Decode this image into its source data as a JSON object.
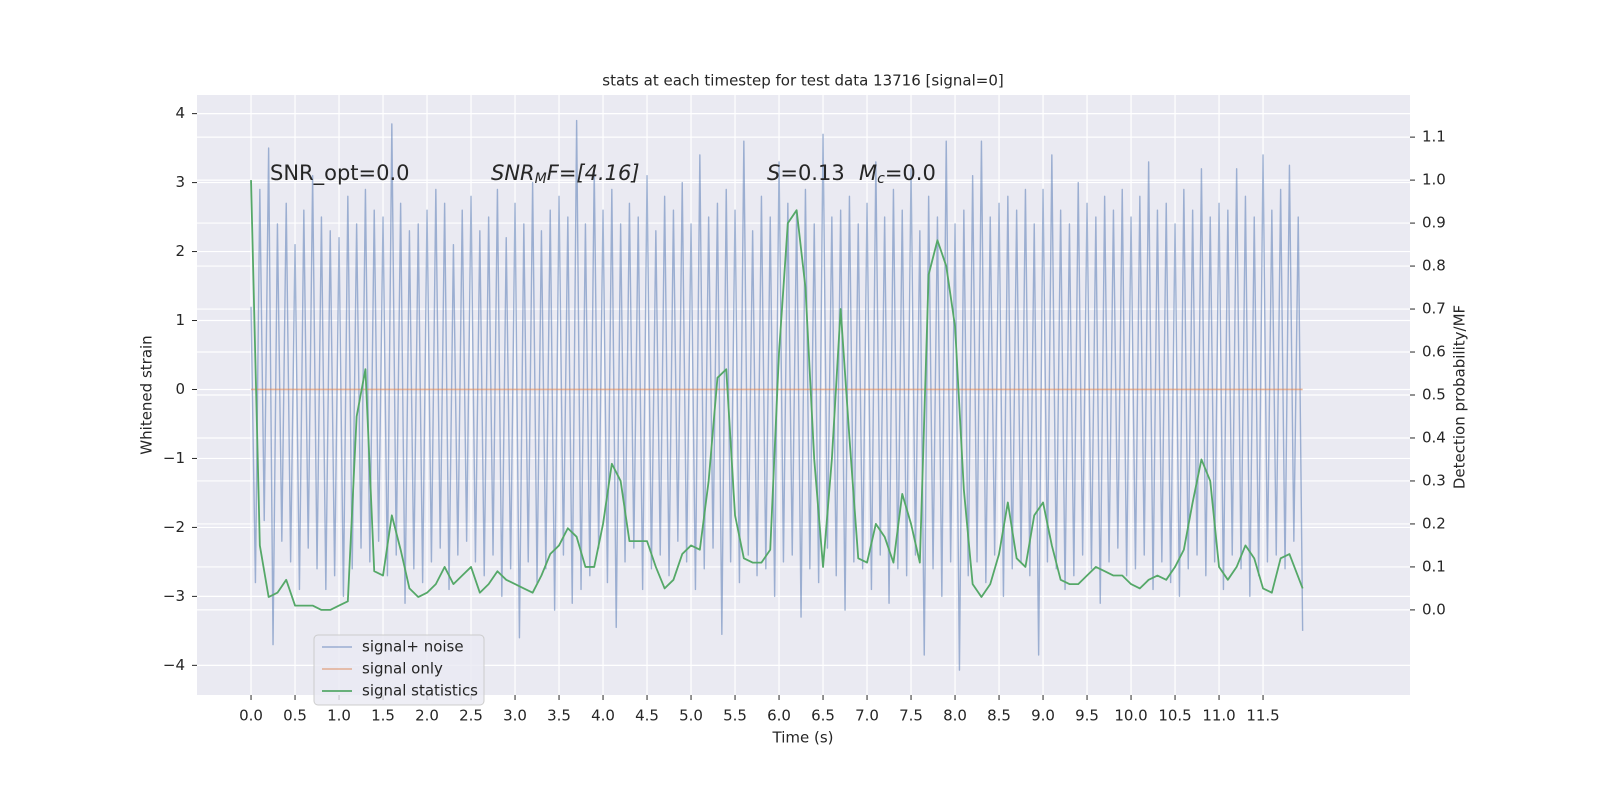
{
  "chart_data": {
    "type": "line",
    "title": "stats at each timestep for test data 13716 [signal=0]",
    "xlabel": "Time (s)",
    "ylabel": "Whitened strain",
    "y2label": "Detection probability/MF",
    "xlim": [
      -0.614,
      13.17
    ],
    "ylim": [
      -4.43,
      4.27
    ],
    "y2lim": [
      -0.198,
      1.198
    ],
    "xticks": [
      {
        "value": 0,
        "label": "0.0"
      },
      {
        "value": 0.5,
        "label": "0.5"
      },
      {
        "value": 1,
        "label": "1.0"
      },
      {
        "value": 1.5,
        "label": "1.5"
      },
      {
        "value": 2,
        "label": "2.0"
      },
      {
        "value": 2.5,
        "label": "2.5"
      },
      {
        "value": 3,
        "label": "3.0"
      },
      {
        "value": 3.5,
        "label": "3.5"
      },
      {
        "value": 4,
        "label": "4.0"
      },
      {
        "value": 4.5,
        "label": "4.5"
      },
      {
        "value": 5,
        "label": "5.0"
      },
      {
        "value": 5.5,
        "label": "5.5"
      },
      {
        "value": 6,
        "label": "6.0"
      },
      {
        "value": 6.5,
        "label": "6.5"
      },
      {
        "value": 7,
        "label": "7.0"
      },
      {
        "value": 7.5,
        "label": "7.5"
      },
      {
        "value": 8,
        "label": "8.0"
      },
      {
        "value": 8.5,
        "label": "8.5"
      },
      {
        "value": 9,
        "label": "9.0"
      },
      {
        "value": 9.5,
        "label": "9.5"
      },
      {
        "value": 10,
        "label": "10.0"
      },
      {
        "value": 10.5,
        "label": "10.5"
      },
      {
        "value": 11,
        "label": "11.0"
      },
      {
        "value": 11.5,
        "label": "11.5"
      }
    ],
    "yticks": [
      {
        "value": -4,
        "label": "−4"
      },
      {
        "value": -3,
        "label": "−3"
      },
      {
        "value": -2,
        "label": "−2"
      },
      {
        "value": -1,
        "label": "−1"
      },
      0,
      1,
      2,
      3,
      4
    ],
    "y2ticks": [
      {
        "value": 0,
        "label": "0.0"
      },
      {
        "value": 0.1,
        "label": "0.1"
      },
      {
        "value": 0.2,
        "label": "0.2"
      },
      {
        "value": 0.3,
        "label": "0.3"
      },
      {
        "value": 0.4,
        "label": "0.4"
      },
      {
        "value": 0.5,
        "label": "0.5"
      },
      {
        "value": 0.6,
        "label": "0.6"
      },
      {
        "value": 0.7,
        "label": "0.7"
      },
      {
        "value": 0.8,
        "label": "0.8"
      },
      {
        "value": 0.9,
        "label": "0.9"
      },
      {
        "value": 1,
        "label": "1.0"
      },
      {
        "value": 1.1,
        "label": "1.1"
      }
    ],
    "grid": true,
    "legend": "lower left",
    "annotations": [
      [
        "SNR_opt=0.0"
      ],
      [
        "SNR",
        "M",
        "F=[4.16]"
      ],
      [
        "S",
        "=0.13"
      ],
      [
        "M",
        "c",
        "=0.0"
      ]
    ],
    "series": [
      {
        "name": "signal+ noise",
        "color": "#4c72b0",
        "x": [
          0,
          0.05,
          0.1,
          0.15,
          0.2,
          0.25,
          0.3,
          0.35,
          0.4,
          0.45,
          0.5,
          0.55,
          0.6,
          0.65,
          0.7,
          0.75,
          0.8,
          0.85,
          0.9,
          0.95,
          1,
          1.05,
          1.1,
          1.15,
          1.2,
          1.25,
          1.3,
          1.35,
          1.4,
          1.45,
          1.5,
          1.55,
          1.6,
          1.65,
          1.7,
          1.75,
          1.8,
          1.85,
          1.9,
          1.95,
          2,
          2.05,
          2.1,
          2.15,
          2.2,
          2.25,
          2.3,
          2.35,
          2.4,
          2.45,
          2.5,
          2.55,
          2.6,
          2.65,
          2.7,
          2.75,
          2.8,
          2.85,
          2.9,
          2.95,
          3,
          3.05,
          3.1,
          3.15,
          3.2,
          3.25,
          3.3,
          3.35,
          3.4,
          3.45,
          3.5,
          3.55,
          3.6,
          3.65,
          3.7,
          3.75,
          3.8,
          3.85,
          3.9,
          3.95,
          4,
          4.05,
          4.1,
          4.15,
          4.2,
          4.25,
          4.3,
          4.35,
          4.4,
          4.45,
          4.5,
          4.55,
          4.6,
          4.65,
          4.7,
          4.75,
          4.8,
          4.85,
          4.9,
          4.95,
          5,
          5.05,
          5.1,
          5.15,
          5.2,
          5.25,
          5.3,
          5.35,
          5.4,
          5.45,
          5.5,
          5.55,
          5.6,
          5.65,
          5.7,
          5.75,
          5.8,
          5.85,
          5.9,
          5.95,
          6,
          6.05,
          6.1,
          6.15,
          6.2,
          6.25,
          6.3,
          6.35,
          6.4,
          6.45,
          6.5,
          6.55,
          6.6,
          6.65,
          6.7,
          6.75,
          6.8,
          6.85,
          6.9,
          6.95,
          7,
          7.05,
          7.1,
          7.15,
          7.2,
          7.25,
          7.3,
          7.35,
          7.4,
          7.45,
          7.5,
          7.55,
          7.6,
          7.65,
          7.7,
          7.75,
          7.8,
          7.85,
          7.9,
          7.95,
          8,
          8.05,
          8.1,
          8.15,
          8.2,
          8.25,
          8.3,
          8.35,
          8.4,
          8.45,
          8.5,
          8.55,
          8.6,
          8.65,
          8.7,
          8.75,
          8.8,
          8.85,
          8.9,
          8.95,
          9,
          9.05,
          9.1,
          9.15,
          9.2,
          9.25,
          9.3,
          9.35,
          9.4,
          9.45,
          9.5,
          9.55,
          9.6,
          9.65,
          9.7,
          9.75,
          9.8,
          9.85,
          9.9,
          9.95,
          10,
          10.05,
          10.1,
          10.15,
          10.2,
          10.25,
          10.3,
          10.35,
          10.4,
          10.45,
          10.5,
          10.55,
          10.6,
          10.65,
          10.7,
          10.75,
          10.8,
          10.85,
          10.9,
          10.95,
          11,
          11.05,
          11.1,
          11.15,
          11.2,
          11.25,
          11.3,
          11.35,
          11.4,
          11.45,
          11.5,
          11.55,
          11.6,
          11.65,
          11.7,
          11.75,
          11.8,
          11.85,
          11.9,
          11.95
        ],
        "values": [
          1.2,
          -2.8,
          2.9,
          -1.9,
          3.5,
          -3.7,
          2.4,
          -2.2,
          2.7,
          -2.5,
          2.1,
          -2.9,
          2.6,
          -2.3,
          3.1,
          -2.6,
          2.5,
          -2.9,
          2.3,
          -2.7,
          2.2,
          -3.0,
          2.8,
          -2.6,
          2.4,
          -2.3,
          2.9,
          -2.5,
          2.6,
          -2.2,
          2.5,
          -2.7,
          3.85,
          -2.4,
          2.7,
          -3.1,
          2.3,
          -2.6,
          2.4,
          -2.8,
          2.6,
          -2.5,
          2.9,
          -2.3,
          2.7,
          -2.9,
          2.1,
          -2.4,
          2.6,
          -2.2,
          2.8,
          -2.5,
          2.3,
          -2.7,
          2.5,
          -2.4,
          2.9,
          -3.0,
          2.2,
          -2.6,
          2.7,
          -3.6,
          2.4,
          -2.5,
          3.0,
          -2.8,
          2.3,
          -2.6,
          2.6,
          -3.2,
          2.8,
          -2.4,
          2.5,
          -3.1,
          3.9,
          -2.9,
          2.4,
          -2.7,
          3.2,
          -2.3,
          2.6,
          -2.8,
          2.9,
          -3.45,
          2.4,
          -2.5,
          2.7,
          -2.3,
          2.5,
          -2.9,
          3.1,
          -2.6,
          2.3,
          -2.4,
          2.8,
          -2.7,
          2.6,
          -2.2,
          3.0,
          -2.5,
          2.4,
          -2.9,
          3.4,
          -2.6,
          2.5,
          -2.3,
          2.7,
          -3.55,
          2.9,
          -2.5,
          2.6,
          -2.8,
          3.6,
          -2.4,
          2.3,
          -2.7,
          2.8,
          -2.6,
          2.5,
          -3.0,
          3.3,
          -2.5,
          2.7,
          -2.4,
          2.6,
          -3.3,
          2.9,
          -2.6,
          2.4,
          -2.8,
          3.7,
          -2.3,
          2.5,
          -2.7,
          2.6,
          -3.2,
          2.8,
          -2.5,
          2.4,
          -2.6,
          2.7,
          -2.9,
          3.3,
          -2.4,
          2.5,
          -3.1,
          2.9,
          -2.6,
          2.6,
          -2.7,
          3.2,
          -2.4,
          2.3,
          -3.85,
          2.8,
          -2.6,
          2.5,
          -3.0,
          3.6,
          -2.5,
          2.4,
          -4.07,
          2.6,
          -2.7,
          3.1,
          -2.5,
          3.6,
          -2.8,
          2.5,
          -2.4,
          2.7,
          -3.0,
          2.8,
          -2.6,
          2.6,
          -2.5,
          2.9,
          -2.7,
          2.4,
          -3.85,
          2.9,
          -2.5,
          3.4,
          -2.6,
          2.6,
          -2.9,
          2.4,
          -2.7,
          3.0,
          -2.4,
          2.7,
          -2.6,
          2.5,
          -3.1,
          2.8,
          -2.5,
          2.6,
          -2.3,
          2.9,
          -2.7,
          2.5,
          -2.6,
          2.8,
          -2.4,
          3.3,
          -2.9,
          2.6,
          -2.5,
          2.7,
          -2.8,
          2.4,
          -3.0,
          2.9,
          -2.6,
          2.6,
          -2.4,
          3.2,
          -2.7,
          2.5,
          -2.5,
          2.7,
          -2.9,
          2.6,
          -2.4,
          3.2,
          -2.6,
          2.8,
          -3.0,
          2.5,
          -2.7,
          3.4,
          -2.5,
          2.6,
          -2.4,
          2.9,
          -2.6,
          3.25,
          -2.2,
          2.5,
          -3.5
        ]
      },
      {
        "name": "signal only",
        "color": "#dd8452",
        "x": [
          0,
          11.95
        ],
        "values": [
          0,
          0
        ]
      },
      {
        "name": "signal statistics",
        "color": "#55a868",
        "axis": "y2",
        "x": [
          0,
          0.1,
          0.2,
          0.3,
          0.4,
          0.5,
          0.6,
          0.7,
          0.8,
          0.9,
          1,
          1.1,
          1.2,
          1.3,
          1.4,
          1.5,
          1.6,
          1.7,
          1.8,
          1.9,
          2,
          2.1,
          2.2,
          2.3,
          2.4,
          2.5,
          2.6,
          2.7,
          2.8,
          2.9,
          3,
          3.1,
          3.2,
          3.3,
          3.4,
          3.5,
          3.6,
          3.7,
          3.8,
          3.9,
          4,
          4.1,
          4.2,
          4.3,
          4.4,
          4.5,
          4.6,
          4.7,
          4.8,
          4.9,
          5,
          5.1,
          5.2,
          5.3,
          5.4,
          5.5,
          5.6,
          5.7,
          5.8,
          5.9,
          6,
          6.1,
          6.2,
          6.3,
          6.4,
          6.5,
          6.6,
          6.7,
          6.8,
          6.9,
          7,
          7.1,
          7.2,
          7.3,
          7.4,
          7.5,
          7.6,
          7.7,
          7.8,
          7.9,
          8,
          8.1,
          8.2,
          8.3,
          8.4,
          8.5,
          8.6,
          8.7,
          8.8,
          8.9,
          9,
          9.1,
          9.2,
          9.3,
          9.4,
          9.5,
          9.6,
          9.7,
          9.8,
          9.9,
          10,
          10.1,
          10.2,
          10.3,
          10.4,
          10.5,
          10.6,
          10.7,
          10.8,
          10.9,
          11,
          11.1,
          11.2,
          11.3,
          11.4,
          11.5,
          11.6,
          11.7,
          11.8,
          11.95
        ],
        "values": [
          1.0,
          0.15,
          0.03,
          0.04,
          0.07,
          0.01,
          0.01,
          0.01,
          0.0,
          0.0,
          0.01,
          0.02,
          0.45,
          0.56,
          0.09,
          0.08,
          0.22,
          0.14,
          0.05,
          0.03,
          0.04,
          0.06,
          0.1,
          0.06,
          0.08,
          0.1,
          0.04,
          0.06,
          0.09,
          0.07,
          0.06,
          0.05,
          0.04,
          0.08,
          0.13,
          0.15,
          0.19,
          0.17,
          0.1,
          0.1,
          0.2,
          0.34,
          0.3,
          0.16,
          0.16,
          0.16,
          0.1,
          0.05,
          0.07,
          0.13,
          0.15,
          0.14,
          0.3,
          0.54,
          0.56,
          0.22,
          0.12,
          0.11,
          0.11,
          0.14,
          0.6,
          0.9,
          0.93,
          0.75,
          0.35,
          0.1,
          0.35,
          0.7,
          0.4,
          0.12,
          0.11,
          0.2,
          0.17,
          0.11,
          0.27,
          0.2,
          0.11,
          0.78,
          0.86,
          0.8,
          0.66,
          0.28,
          0.06,
          0.03,
          0.06,
          0.13,
          0.25,
          0.12,
          0.1,
          0.22,
          0.25,
          0.15,
          0.07,
          0.06,
          0.06,
          0.08,
          0.1,
          0.09,
          0.08,
          0.08,
          0.06,
          0.05,
          0.07,
          0.08,
          0.07,
          0.1,
          0.14,
          0.25,
          0.35,
          0.3,
          0.1,
          0.07,
          0.1,
          0.15,
          0.12,
          0.05,
          0.04,
          0.12,
          0.13,
          0.05
        ]
      }
    ]
  }
}
